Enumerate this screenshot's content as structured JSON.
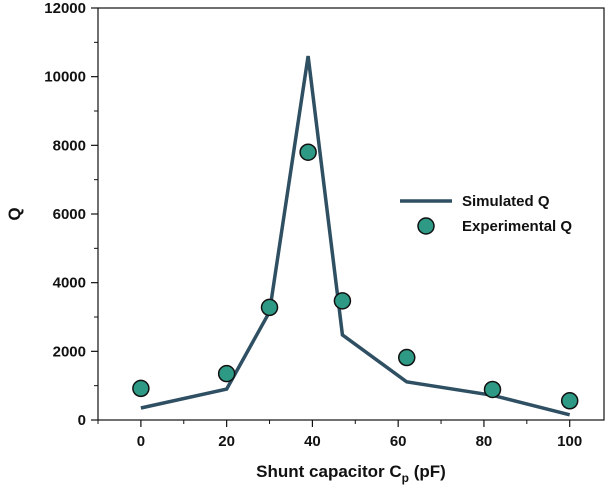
{
  "chart_data": {
    "type": "line",
    "xlabel": {
      "main": "Shunt capacitor C",
      "sub": "p",
      "unit": " (pF)"
    },
    "ylabel": "Q",
    "xlim": [
      -10,
      108
    ],
    "ylim": [
      0,
      12000
    ],
    "xticks": [
      0,
      20,
      40,
      60,
      80,
      100
    ],
    "yticks": [
      0,
      2000,
      4000,
      6000,
      8000,
      10000,
      12000
    ],
    "xticklabels": [
      "0",
      "20",
      "40",
      "60",
      "80",
      "100"
    ],
    "yticklabels": [
      "0",
      "2000",
      "4000",
      "6000",
      "8000",
      "10000",
      "12000"
    ],
    "legend_position": "center-right",
    "series": [
      {
        "name": "Simulated Q",
        "kind": "line",
        "color": "#2f4f63",
        "x": [
          0,
          20,
          30,
          39,
          47,
          62,
          82,
          100
        ],
        "y": [
          350,
          900,
          3150,
          10600,
          2480,
          1110,
          720,
          150
        ]
      },
      {
        "name": "Experimental Q",
        "kind": "scatter",
        "color": "#2e9a85",
        "x": [
          0,
          20,
          30,
          39,
          47,
          62,
          82,
          100
        ],
        "y": [
          920,
          1350,
          3280,
          7800,
          3470,
          1820,
          890,
          560
        ]
      }
    ],
    "grid": false
  }
}
